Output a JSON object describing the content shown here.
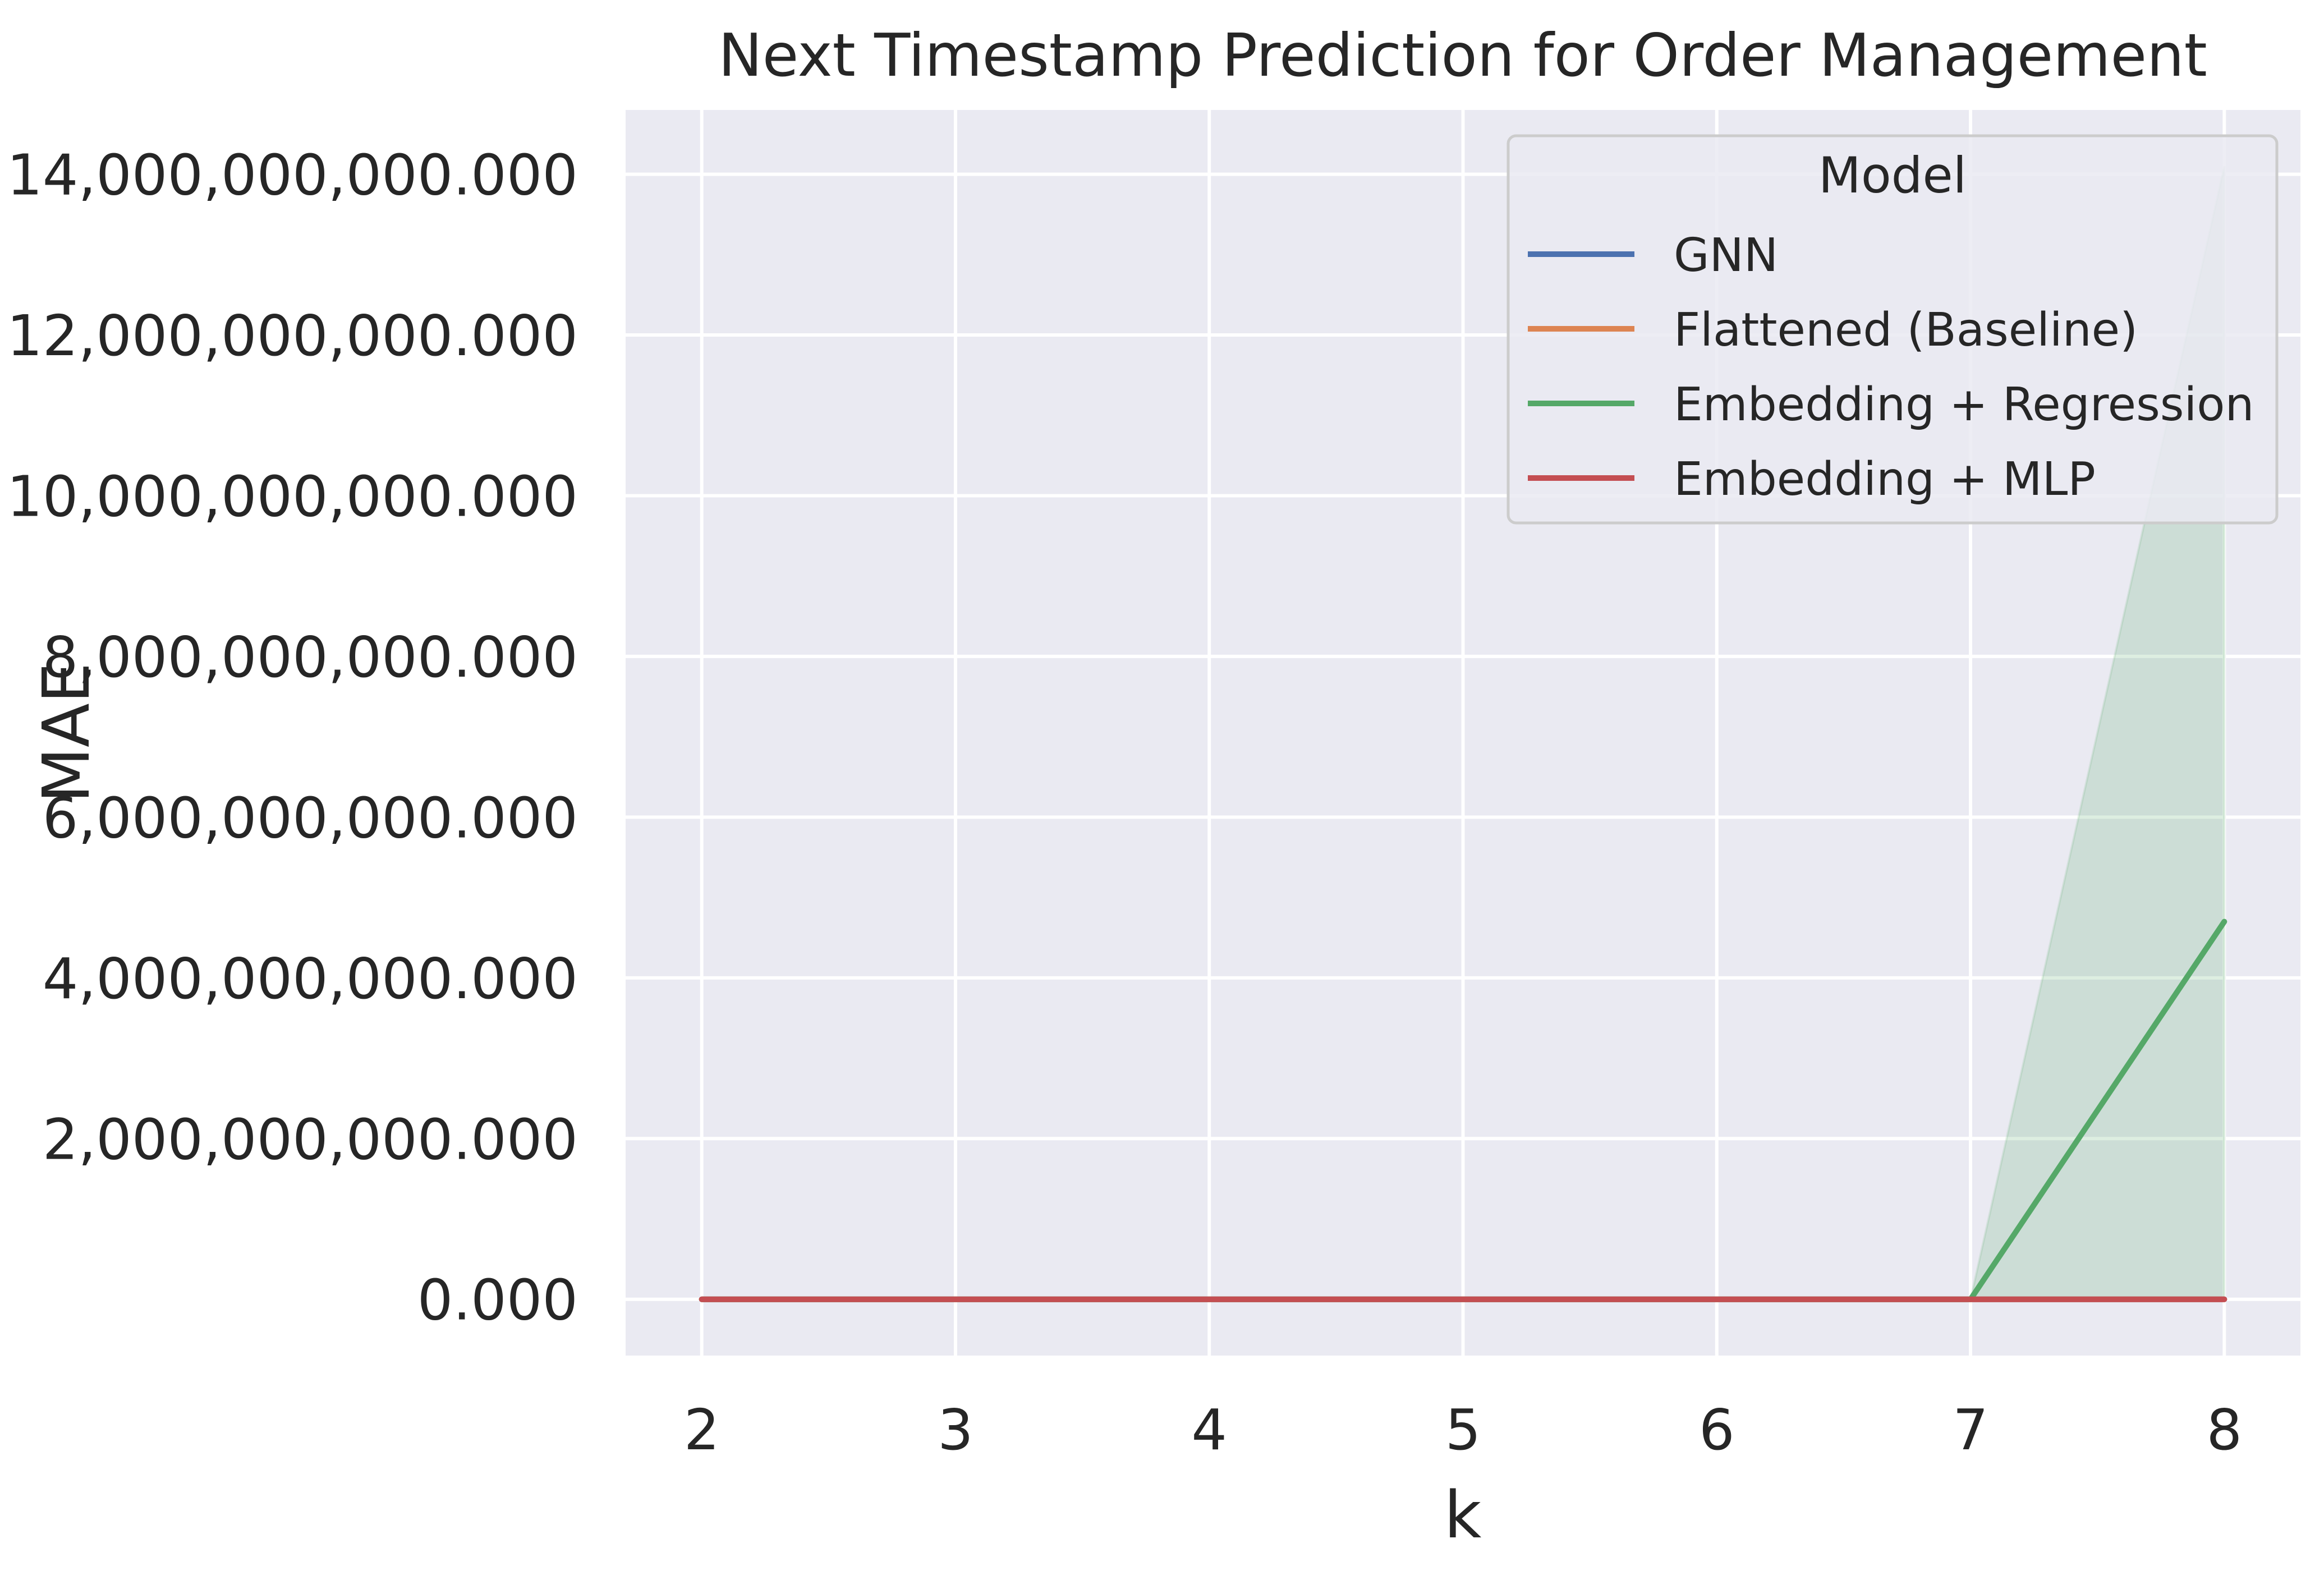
{
  "chart_data": {
    "type": "line",
    "title": "Next Timestamp Prediction for Order Management",
    "xlabel": "k",
    "ylabel": "MAE",
    "x": [
      2,
      3,
      4,
      5,
      6,
      7,
      8
    ],
    "x_ticks": [
      "2",
      "3",
      "4",
      "5",
      "6",
      "7",
      "8"
    ],
    "xlim": [
      1.7,
      8.3
    ],
    "y_ticks": [
      "0.000",
      "2,000,000,000.000",
      "4,000,000,000.000",
      "6,000,000,000.000",
      "8,000,000,000.000",
      "10,000,000,000.000",
      "12,000,000,000.000",
      "14,000,000,000.000"
    ],
    "y_tick_values": [
      0,
      2000000000,
      4000000000,
      6000000000,
      8000000000,
      10000000000,
      12000000000,
      14000000000
    ],
    "ylim": [
      -700000000,
      14800000000
    ],
    "grid": true,
    "legend": {
      "title": "Model",
      "placement": "top-right"
    },
    "series": [
      {
        "name": "GNN",
        "color": "#4c72b0",
        "values": [
          0,
          0,
          0,
          0,
          0,
          0,
          0
        ]
      },
      {
        "name": "Flattened (Baseline)",
        "color": "#dd8452",
        "values": [
          0,
          0,
          0,
          0,
          0,
          0,
          0
        ]
      },
      {
        "name": "Embedding + Regression",
        "color": "#55a868",
        "values": [
          0,
          0,
          0,
          0,
          0,
          0,
          4700000000
        ],
        "band_lower": [
          0,
          0,
          0,
          0,
          0,
          0,
          0
        ],
        "band_upper": [
          0,
          0,
          0,
          0,
          0,
          0,
          14100000000
        ]
      },
      {
        "name": "Embedding + MLP",
        "color": "#c44e52",
        "values": [
          0,
          0,
          0,
          0,
          0,
          0,
          0
        ]
      }
    ]
  }
}
